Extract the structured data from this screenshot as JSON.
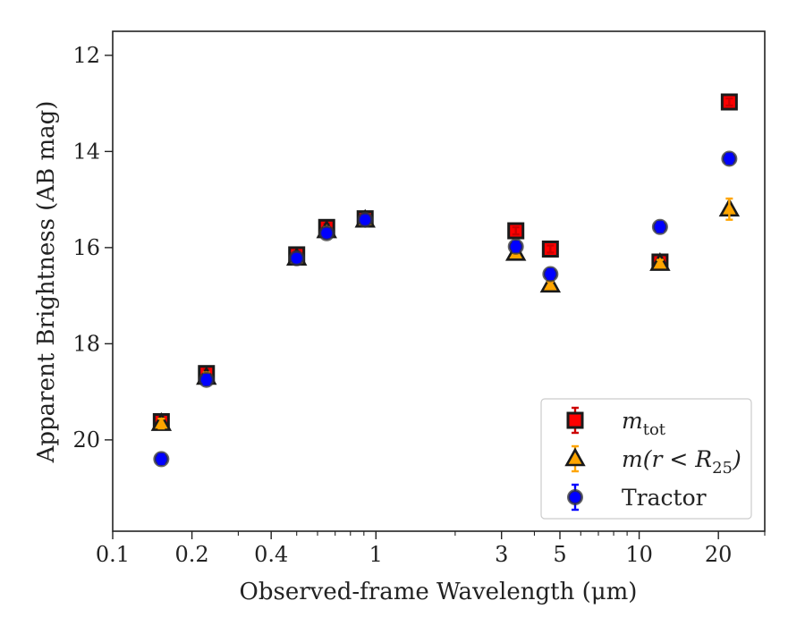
{
  "chart_data": {
    "type": "scatter",
    "title": "",
    "xlabel": "Observed-frame Wavelength (μm)",
    "ylabel": "Apparent Brightness (AB mag)",
    "xscale": "log",
    "xlim": [
      0.1,
      30
    ],
    "ylim": [
      21.9,
      11.5
    ],
    "y_inverted": true,
    "grid": false,
    "legend_position": "bottom-right",
    "x_ticks": [
      {
        "value": 0.1,
        "label": "0.1"
      },
      {
        "value": 0.2,
        "label": "0.2"
      },
      {
        "value": 0.4,
        "label": "0.4"
      },
      {
        "value": 1,
        "label": "1"
      },
      {
        "value": 3,
        "label": "3"
      },
      {
        "value": 5,
        "label": "5"
      },
      {
        "value": 10,
        "label": "10"
      },
      {
        "value": 20,
        "label": "20"
      }
    ],
    "y_ticks": [
      {
        "value": 12,
        "label": "12"
      },
      {
        "value": 14,
        "label": "14"
      },
      {
        "value": 16,
        "label": "16"
      },
      {
        "value": 18,
        "label": "18"
      },
      {
        "value": 20,
        "label": "20"
      }
    ],
    "series": [
      {
        "name": "m_tot",
        "legend_main": "m",
        "legend_sub": "tot",
        "marker": "square",
        "color": "#ff0000",
        "error_color": "#cc0000",
        "points": [
          {
            "x": 0.153,
            "y": 19.62,
            "err": 0.1
          },
          {
            "x": 0.227,
            "y": 18.62,
            "err": 0.1
          },
          {
            "x": 0.5,
            "y": 16.15,
            "err": 0.08
          },
          {
            "x": 0.65,
            "y": 15.58,
            "err": 0.08
          },
          {
            "x": 0.91,
            "y": 15.4,
            "err": 0.06
          },
          {
            "x": 3.4,
            "y": 15.65,
            "err": 0.05
          },
          {
            "x": 4.6,
            "y": 16.03,
            "err": 0.05
          },
          {
            "x": 12.0,
            "y": 16.3,
            "err": 0.05
          },
          {
            "x": 22.0,
            "y": 12.97,
            "err": 0.05
          }
        ]
      },
      {
        "name": "m(r < R25)",
        "legend_main": "m(r < R",
        "legend_sub": "25",
        "legend_tail": ")",
        "marker": "triangle",
        "color": "#ffa500",
        "error_color": "#ffa500",
        "points": [
          {
            "x": 0.153,
            "y": 19.66,
            "err": 0.1
          },
          {
            "x": 0.227,
            "y": 18.7,
            "err": 0.1
          },
          {
            "x": 0.5,
            "y": 16.22,
            "err": 0.06
          },
          {
            "x": 0.65,
            "y": 15.65,
            "err": 0.06
          },
          {
            "x": 0.91,
            "y": 15.43,
            "err": 0.05
          },
          {
            "x": 3.4,
            "y": 16.12,
            "err": 0.05
          },
          {
            "x": 4.6,
            "y": 16.78,
            "err": 0.05
          },
          {
            "x": 12.0,
            "y": 16.33,
            "err": 0.05
          },
          {
            "x": 22.0,
            "y": 15.2,
            "err": 0.22
          }
        ]
      },
      {
        "name": "Tractor",
        "legend_main": "Tractor",
        "marker": "circle",
        "color": "#0000ff",
        "error_color": "#0000ff",
        "points": [
          {
            "x": 0.153,
            "y": 20.4,
            "err": 0.1
          },
          {
            "x": 0.227,
            "y": 18.75,
            "err": 0.1
          },
          {
            "x": 0.5,
            "y": 16.22,
            "err": 0.06
          },
          {
            "x": 0.65,
            "y": 15.7,
            "err": 0.06
          },
          {
            "x": 0.91,
            "y": 15.42,
            "err": 0.06
          },
          {
            "x": 3.4,
            "y": 15.98,
            "err": 0.1
          },
          {
            "x": 4.6,
            "y": 16.55,
            "err": 0.1
          },
          {
            "x": 12.0,
            "y": 15.57,
            "err": 0.1
          },
          {
            "x": 22.0,
            "y": 14.15,
            "err": 0.1
          }
        ]
      }
    ]
  }
}
